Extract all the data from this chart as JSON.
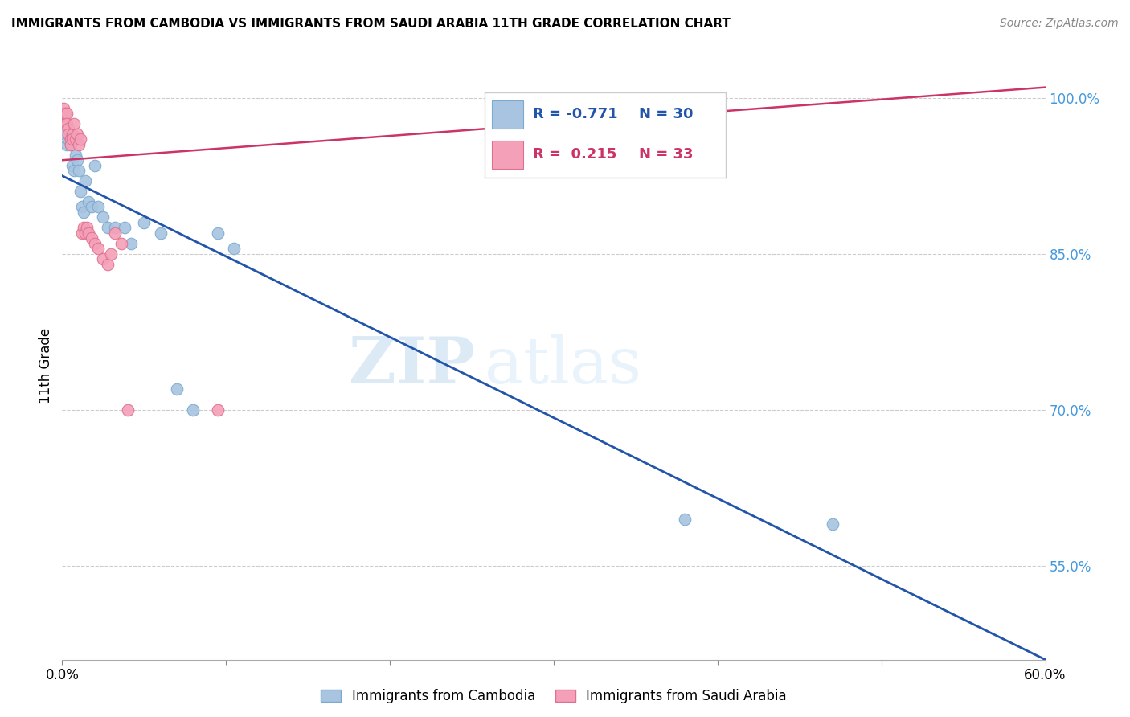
{
  "title": "IMMIGRANTS FROM CAMBODIA VS IMMIGRANTS FROM SAUDI ARABIA 11TH GRADE CORRELATION CHART",
  "source": "Source: ZipAtlas.com",
  "ylabel": "11th Grade",
  "legend_bottom": [
    "Immigrants from Cambodia",
    "Immigrants from Saudi Arabia"
  ],
  "legend_top": {
    "cambodia": {
      "R": -0.771,
      "N": 30
    },
    "saudi": {
      "R": 0.215,
      "N": 33
    }
  },
  "xlim": [
    0.0,
    0.6
  ],
  "ylim": [
    0.46,
    1.025
  ],
  "xticks": [
    0.0,
    0.1,
    0.2,
    0.3,
    0.4,
    0.5,
    0.6
  ],
  "xtick_labels": [
    "0.0%",
    "",
    "",
    "",
    "",
    "",
    "60.0%"
  ],
  "yticks_right": [
    0.55,
    0.7,
    0.85,
    1.0
  ],
  "ytick_labels_right": [
    "55.0%",
    "70.0%",
    "85.0%",
    "100.0%"
  ],
  "watermark_zip": "ZIP",
  "watermark_atlas": "atlas",
  "cambodia_color": "#a8c4e0",
  "cambodia_edge_color": "#7aaacf",
  "cambodia_line_color": "#2255aa",
  "saudi_color": "#f4a0b8",
  "saudi_edge_color": "#e07090",
  "saudi_line_color": "#cc3366",
  "cambodia_x": [
    0.002,
    0.003,
    0.004,
    0.005,
    0.006,
    0.007,
    0.008,
    0.009,
    0.01,
    0.011,
    0.012,
    0.013,
    0.014,
    0.016,
    0.018,
    0.02,
    0.022,
    0.025,
    0.028,
    0.032,
    0.038,
    0.042,
    0.05,
    0.06,
    0.07,
    0.08,
    0.095,
    0.105,
    0.38,
    0.47
  ],
  "cambodia_y": [
    0.965,
    0.955,
    0.96,
    0.955,
    0.935,
    0.93,
    0.945,
    0.94,
    0.93,
    0.91,
    0.895,
    0.89,
    0.92,
    0.9,
    0.895,
    0.935,
    0.895,
    0.885,
    0.875,
    0.875,
    0.875,
    0.86,
    0.88,
    0.87,
    0.72,
    0.7,
    0.87,
    0.855,
    0.595,
    0.59
  ],
  "saudi_x": [
    0.001,
    0.001,
    0.002,
    0.002,
    0.003,
    0.003,
    0.004,
    0.004,
    0.005,
    0.005,
    0.006,
    0.006,
    0.007,
    0.008,
    0.009,
    0.01,
    0.011,
    0.012,
    0.013,
    0.014,
    0.015,
    0.016,
    0.018,
    0.02,
    0.022,
    0.025,
    0.028,
    0.03,
    0.032,
    0.036,
    0.04,
    0.095,
    0.29
  ],
  "saudi_y": [
    0.99,
    0.98,
    0.985,
    0.975,
    0.985,
    0.975,
    0.97,
    0.965,
    0.96,
    0.955,
    0.965,
    0.96,
    0.975,
    0.96,
    0.965,
    0.955,
    0.96,
    0.87,
    0.875,
    0.87,
    0.875,
    0.87,
    0.865,
    0.86,
    0.855,
    0.845,
    0.84,
    0.85,
    0.87,
    0.86,
    0.7,
    0.7,
    0.975
  ],
  "cambodia_trend_x": [
    0.0,
    0.6
  ],
  "cambodia_trend_y": [
    0.925,
    0.46
  ],
  "saudi_trend_x": [
    0.0,
    0.6
  ],
  "saudi_trend_y": [
    0.94,
    1.01
  ]
}
